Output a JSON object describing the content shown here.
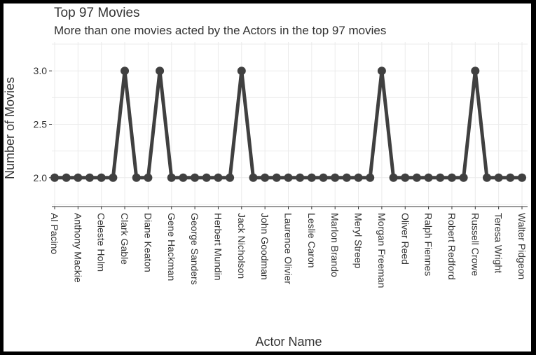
{
  "chart_data": {
    "type": "line",
    "title": "Top 97 Movies",
    "subtitle": "More than one movies acted by the Actors in the top 97 movies",
    "xlabel": "Actor Name",
    "ylabel": "Number of Movies",
    "ylim": [
      1.73,
      3.27
    ],
    "yticks": [
      {
        "value": 2.0,
        "label": "2.0"
      },
      {
        "value": 2.5,
        "label": "2.5"
      },
      {
        "value": 3.0,
        "label": "3.0"
      }
    ],
    "labeled_categories": [
      "Al Pacino",
      "Anthony Mackie",
      "Celeste Holm",
      "Clark Gable",
      "Diane Keaton",
      "Gene Hackman",
      "George Sanders",
      "Herbert Mundin",
      "Jack Nicholson",
      "John Goodman",
      "Laurence Olivier",
      "Leslie Caron",
      "Marlon Brando",
      "Meryl Streep",
      "Morgan Freeman",
      "Oliver Reed",
      "Ralph Fiennes",
      "Robert Redford",
      "Russell Crowe",
      "Teresa Wright",
      "Walter Pidgeon"
    ],
    "values": [
      2,
      2,
      2,
      2,
      2,
      2,
      3,
      2,
      2,
      3,
      2,
      2,
      2,
      2,
      2,
      2,
      3,
      2,
      2,
      2,
      2,
      2,
      2,
      2,
      2,
      2,
      2,
      2,
      3,
      2,
      2,
      2,
      2,
      2,
      2,
      2,
      3,
      2,
      2,
      2,
      2
    ],
    "grid": true,
    "colors": {
      "line": "#404040",
      "point": "#404040",
      "grid": "#ebebeb",
      "background": "#ffffff",
      "frame": "#000000"
    }
  }
}
